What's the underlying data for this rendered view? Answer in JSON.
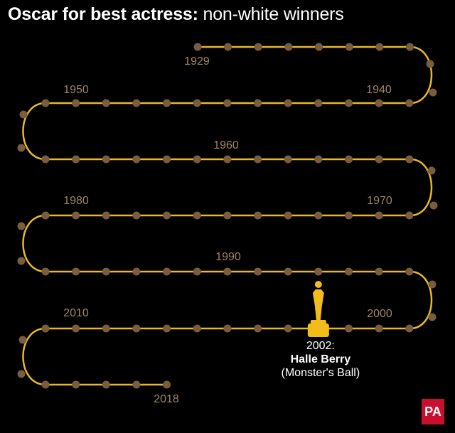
{
  "title": {
    "bold": "Oscar for best actress:",
    "light": "non-white winners"
  },
  "colors": {
    "track": "#e8b828",
    "dot": "#7a5c3e",
    "year_label": "#a08666",
    "statuette": "#f2bc1a",
    "winner_text": "#ffffff",
    "logo": "#c8102e"
  },
  "timeline": {
    "start_year": 1929,
    "end_year": 2018,
    "year_labels": [
      "1929",
      "1940",
      "1950",
      "1960",
      "1970",
      "1980",
      "1990",
      "2000",
      "2010",
      "2018"
    ]
  },
  "winner": {
    "year": "2002:",
    "name": "Halle Berry",
    "film": "(Monster's Ball)",
    "icon": "oscar-statuette-icon"
  },
  "logo": {
    "text": "PA"
  }
}
